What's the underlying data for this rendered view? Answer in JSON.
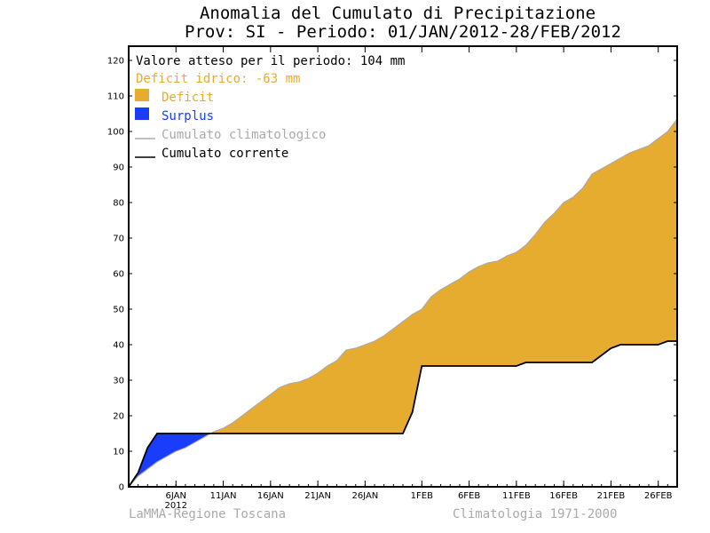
{
  "chart_data": {
    "type": "area",
    "title_line1": "Anomalia del Cumulato di Precipitazione",
    "title_line2": "Prov: SI - Periodo: 01/JAN/2012-28/FEB/2012",
    "y_ticks": [
      "0",
      "10",
      "20",
      "30",
      "40",
      "50",
      "60",
      "70",
      "80",
      "90",
      "100",
      "110",
      "120"
    ],
    "ylim": [
      0,
      124
    ],
    "xlim": [
      1,
      59
    ],
    "x_ticks": [
      {
        "day": 6,
        "label": "6JAN",
        "sublabel": "2012"
      },
      {
        "day": 11,
        "label": "11JAN"
      },
      {
        "day": 16,
        "label": "16JAN"
      },
      {
        "day": 21,
        "label": "21JAN"
      },
      {
        "day": 26,
        "label": "26JAN"
      },
      {
        "day": 32,
        "label": "1FEB"
      },
      {
        "day": 37,
        "label": "6FEB"
      },
      {
        "day": 42,
        "label": "11FEB"
      },
      {
        "day": 47,
        "label": "16FEB"
      },
      {
        "day": 52,
        "label": "21FEB"
      },
      {
        "day": 57,
        "label": "26FEB"
      }
    ],
    "legend": {
      "expected": "Valore atteso per il periodo: 104 mm",
      "deficit_text": "Deficit idrico: -63 mm",
      "deficit_label": "Deficit",
      "surplus_label": "Surplus",
      "climatological_label": "Cumulato climatologico",
      "current_label": "Cumulato corrente"
    },
    "colors": {
      "deficit": "#e5ac30",
      "surplus": "#1a3dfc",
      "climatological": "#aaaaaa",
      "current": "#000000"
    },
    "series": [
      {
        "name": "Cumulato climatologico",
        "x": [
          1,
          2,
          3,
          4,
          5,
          6,
          7,
          8,
          9,
          10,
          11,
          12,
          13,
          14,
          15,
          16,
          17,
          18,
          19,
          20,
          21,
          22,
          23,
          24,
          25,
          26,
          27,
          28,
          29,
          30,
          31,
          32,
          33,
          34,
          35,
          36,
          37,
          38,
          39,
          40,
          41,
          42,
          43,
          44,
          45,
          46,
          47,
          48,
          49,
          50,
          51,
          52,
          53,
          54,
          55,
          56,
          57,
          58,
          59
        ],
        "values": [
          0,
          3,
          5,
          7,
          8.5,
          10,
          11,
          12.5,
          14,
          15.5,
          16.5,
          18,
          20,
          22,
          24,
          26,
          28,
          29,
          29.5,
          30.5,
          32,
          34,
          35.5,
          38.5,
          39,
          40,
          41,
          42.5,
          44.5,
          46.5,
          48.5,
          50,
          53.5,
          55.5,
          57,
          58.5,
          60.5,
          62,
          63,
          63.5,
          65,
          66,
          68,
          71,
          74.5,
          77,
          80,
          81.5,
          84,
          88,
          89.5,
          91,
          92.5,
          94,
          95,
          96,
          98,
          100,
          103.5
        ]
      },
      {
        "name": "Cumulato corrente",
        "x": [
          1,
          2,
          3,
          4,
          5,
          6,
          7,
          8,
          9,
          10,
          11,
          12,
          13,
          14,
          15,
          16,
          17,
          18,
          19,
          20,
          21,
          22,
          23,
          24,
          25,
          26,
          27,
          28,
          29,
          30,
          31,
          32,
          33,
          34,
          35,
          36,
          37,
          38,
          39,
          40,
          41,
          42,
          43,
          44,
          45,
          46,
          47,
          48,
          49,
          50,
          51,
          52,
          53,
          54,
          55,
          56,
          57,
          58,
          59
        ],
        "values": [
          0,
          4,
          11,
          15,
          15,
          15,
          15,
          15,
          15,
          15,
          15,
          15,
          15,
          15,
          15,
          15,
          15,
          15,
          15,
          15,
          15,
          15,
          15,
          15,
          15,
          15,
          15,
          15,
          15,
          15,
          21,
          34,
          34,
          34,
          34,
          34,
          34,
          34,
          34,
          34,
          34,
          34,
          35,
          35,
          35,
          35,
          35,
          35,
          35,
          35,
          37,
          39,
          40,
          40,
          40,
          40,
          40,
          41,
          41
        ]
      }
    ],
    "footer_left": "LaMMA-Regione Toscana",
    "footer_right": "Climatologia 1971-2000"
  }
}
